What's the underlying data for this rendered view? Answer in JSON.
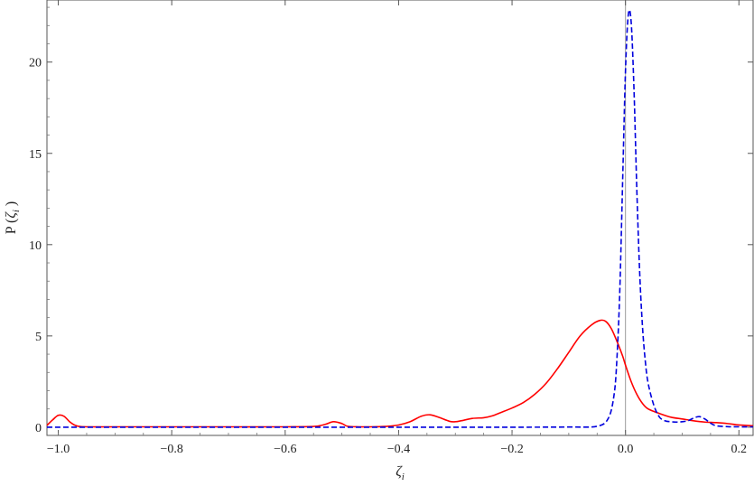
{
  "chart_data": {
    "type": "line",
    "title": "",
    "xlabel": "ζ",
    "xlabel_sub": "i",
    "ylabel_prefix": "P (",
    "ylabel_var": "ζ",
    "ylabel_sub": "i",
    "ylabel_suffix": " )",
    "xlim": [
      -1.02,
      0.225
    ],
    "ylim": [
      -0.45,
      23.4
    ],
    "xticks": [
      -1.0,
      -0.8,
      -0.6,
      -0.4,
      -0.2,
      0.0,
      0.2
    ],
    "xtick_labels": [
      "−1.0",
      "−0.8",
      "−0.6",
      "−0.4",
      "−0.2",
      "0.0",
      "0.2"
    ],
    "yticks": [
      0,
      5,
      10,
      15,
      20
    ],
    "ytick_labels": [
      "0",
      "5",
      "10",
      "15",
      "20"
    ],
    "grid": false,
    "legend": "none",
    "series": [
      {
        "color": "#ff0000",
        "dash": "solid",
        "x": [
          -1.02,
          -1.01,
          -1.0,
          -0.99,
          -0.98,
          -0.97,
          -0.96,
          -0.94,
          -0.9,
          -0.8,
          -0.7,
          -0.6,
          -0.55,
          -0.53,
          -0.515,
          -0.5,
          -0.49,
          -0.47,
          -0.45,
          -0.42,
          -0.4,
          -0.38,
          -0.36,
          -0.345,
          -0.33,
          -0.31,
          -0.3,
          -0.29,
          -0.27,
          -0.25,
          -0.235,
          -0.22,
          -0.2,
          -0.18,
          -0.16,
          -0.14,
          -0.12,
          -0.1,
          -0.08,
          -0.06,
          -0.045,
          -0.035,
          -0.025,
          -0.015,
          -0.005,
          0.0,
          0.01,
          0.02,
          0.03,
          0.04,
          0.06,
          0.08,
          0.1,
          0.12,
          0.14,
          0.16,
          0.18,
          0.2,
          0.225
        ],
        "y": [
          0.1,
          0.4,
          0.65,
          0.6,
          0.3,
          0.1,
          0.03,
          0.02,
          0.02,
          0.02,
          0.02,
          0.02,
          0.04,
          0.15,
          0.3,
          0.2,
          0.05,
          0.02,
          0.02,
          0.05,
          0.12,
          0.3,
          0.6,
          0.68,
          0.55,
          0.32,
          0.3,
          0.35,
          0.48,
          0.52,
          0.62,
          0.8,
          1.05,
          1.35,
          1.8,
          2.4,
          3.2,
          4.1,
          5.0,
          5.6,
          5.85,
          5.8,
          5.4,
          4.7,
          3.9,
          3.4,
          2.5,
          1.8,
          1.3,
          1.0,
          0.75,
          0.55,
          0.45,
          0.35,
          0.28,
          0.25,
          0.2,
          0.12,
          0.08
        ]
      },
      {
        "color": "#0000dd",
        "dash": "dashed",
        "x": [
          -1.02,
          -0.8,
          -0.6,
          -0.4,
          -0.2,
          -0.1,
          -0.05,
          -0.03,
          -0.02,
          -0.015,
          -0.01,
          -0.005,
          0.0,
          0.005,
          0.01,
          0.015,
          0.02,
          0.025,
          0.03,
          0.035,
          0.04,
          0.05,
          0.06,
          0.07,
          0.08,
          0.09,
          0.1,
          0.11,
          0.12,
          0.13,
          0.14,
          0.15,
          0.16,
          0.18,
          0.2,
          0.225
        ],
        "y": [
          0.0,
          0.0,
          0.0,
          0.0,
          0.0,
          0.01,
          0.05,
          0.5,
          1.8,
          3.8,
          7.5,
          13.5,
          19.5,
          22.6,
          22.2,
          18.5,
          13.0,
          8.5,
          5.5,
          3.6,
          2.4,
          1.2,
          0.55,
          0.35,
          0.3,
          0.28,
          0.3,
          0.35,
          0.5,
          0.58,
          0.45,
          0.22,
          0.08,
          0.03,
          0.02,
          0.02
        ]
      }
    ]
  }
}
